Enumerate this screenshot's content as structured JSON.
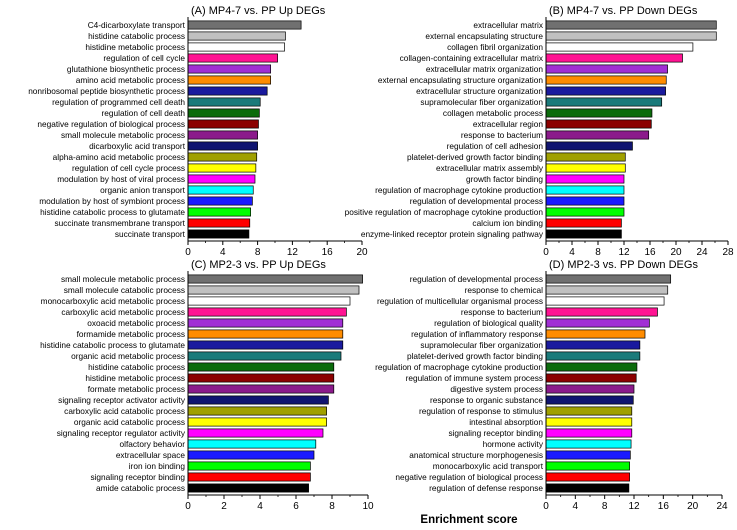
{
  "figure": {
    "x_axis_title": "Enrichment score"
  },
  "chart_data": [
    {
      "type": "bar",
      "orientation": "horizontal",
      "title": "(A) MP4-7 vs. PP Up DEGs",
      "xlim": [
        0,
        20
      ],
      "xticks": [
        0,
        4,
        8,
        12,
        16,
        20
      ],
      "categories": [
        "C4-dicarboxylate transport",
        "histidine catabolic process",
        "histidine metabolic process",
        "regulation of cell cycle",
        "glutathione biosynthetic process",
        "amino acid metabolic process",
        "nonribosomal peptide biosynthetic process",
        "regulation of programmed cell death",
        "regulation of cell death",
        "negative regulation of biological process",
        "small molecule metabolic process",
        "dicarboxylic acid transport",
        "alpha-amino acid metabolic process",
        "regulation of cell cycle process",
        "modulation by host of viral process",
        "organic anion transport",
        "modulation by host of symbiont process",
        "histidine catabolic process to glutamate",
        "succinate transmembrane transport",
        "succinate transport"
      ],
      "values": [
        13.0,
        11.2,
        11.1,
        10.3,
        9.5,
        9.5,
        9.1,
        8.3,
        8.2,
        8.1,
        8.0,
        8.0,
        7.9,
        7.8,
        7.7,
        7.5,
        7.4,
        7.2,
        7.1,
        7.0
      ]
    },
    {
      "type": "bar",
      "orientation": "horizontal",
      "title": "(B) MP4-7 vs. PP Down DEGs",
      "xlim": [
        0,
        28
      ],
      "xticks": [
        0,
        4,
        8,
        12,
        16,
        20,
        24,
        28
      ],
      "categories": [
        "extracellular matrix",
        "external encapsulating structure",
        "collagen fibril organization",
        "collagen-containing extracellular matrix",
        "extracellular matrix organization",
        "external encapsulating structure organization",
        "extracellular structure organization",
        "supramolecular fiber organization",
        "collagen metabolic process",
        "extracellular region",
        "response to bacterium",
        "regulation of cell adhesion",
        "platelet-derived growth factor binding",
        "extracellular matrix assembly",
        "growth factor binding",
        "regulation of macrophage cytokine production",
        "regulation of developmental process",
        "positive regulation of macrophage cytokine production",
        "calcium ion binding",
        "enzyme-linked receptor protein signaling pathway"
      ],
      "values": [
        26.2,
        26.2,
        22.6,
        21.0,
        18.7,
        18.5,
        18.4,
        17.8,
        16.3,
        16.2,
        15.8,
        13.3,
        12.2,
        12.2,
        12.0,
        12.0,
        12.0,
        12.0,
        11.6,
        11.6
      ]
    },
    {
      "type": "bar",
      "orientation": "horizontal",
      "title": "(C) MP2-3 vs. PP Up DEGs",
      "xlim": [
        0,
        10
      ],
      "xticks": [
        0,
        2,
        4,
        6,
        8,
        10
      ],
      "categories": [
        "small molecule metabolic process",
        "small molecule catabolic process",
        "monocarboxylic acid metabolic process",
        "carboxylic acid metabolic process",
        "oxoacid metabolic process",
        "formamide metabolic process",
        "histidine catabolic process to glutamate",
        "organic acid metabolic process",
        "histidine catabolic process",
        "histidine metabolic process",
        "formate metabolic process",
        "signaling receptor activator activity",
        "carboxylic acid catabolic process",
        "organic acid catabolic process",
        "signaling receptor regulator activity",
        "olfactory behavior",
        "extracellular space",
        "iron ion binding",
        "signaling receptor binding",
        "amide catabolic process"
      ],
      "values": [
        9.7,
        9.5,
        9.0,
        8.8,
        8.6,
        8.6,
        8.6,
        8.5,
        8.1,
        8.1,
        8.1,
        7.8,
        7.7,
        7.7,
        7.5,
        7.1,
        7.0,
        6.8,
        6.8,
        6.7
      ]
    },
    {
      "type": "bar",
      "orientation": "horizontal",
      "title": "(D) MP2-3 vs. PP Down DEGs",
      "xlim": [
        0,
        24
      ],
      "xticks": [
        0,
        4,
        8,
        12,
        16,
        20,
        24
      ],
      "categories": [
        "regulation of developmental process",
        "response to chemical",
        "regulation of multicellular organismal process",
        "response to bacterium",
        "regulation of biological quality",
        "regulation of inflammatory response",
        "supramolecular fiber organization",
        "platelet-derived growth factor binding",
        "regulation of macrophage cytokine production",
        "regulation of immune system process",
        "digestive system process",
        "response to organic substance",
        "regulation of response to stimulus",
        "intestinal absorption",
        "signaling receptor binding",
        "hormone activity",
        "anatomical structure morphogenesis",
        "monocarboxylic acid transport",
        "negative regulation of biological process",
        "regulation of defense response"
      ],
      "values": [
        17.0,
        16.6,
        16.1,
        15.2,
        14.1,
        13.5,
        12.8,
        12.8,
        12.4,
        12.3,
        12.0,
        11.9,
        11.7,
        11.7,
        11.7,
        11.6,
        11.5,
        11.4,
        11.4,
        11.3
      ]
    }
  ],
  "bar_colors": [
    "#707070",
    "#c0c0c0",
    "#ffffff",
    "#ff1493",
    "#a12fd4",
    "#ff8c00",
    "#1a1a9e",
    "#1a7a7a",
    "#0b6b0b",
    "#8b0000",
    "#8b1a8b",
    "#101470",
    "#a0a000",
    "#ffff00",
    "#ff00ff",
    "#00ffff",
    "#1a1aff",
    "#00ff00",
    "#ff0000",
    "#000000"
  ]
}
